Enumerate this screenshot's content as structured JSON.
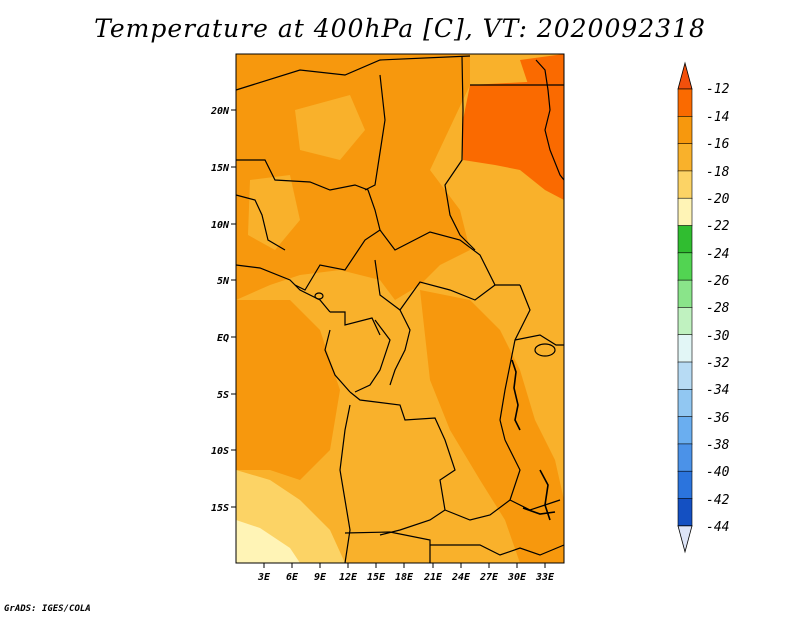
{
  "title": "Temperature at 400hPa [C], VT: 2020092318",
  "credit": "GrADS: IGES/COLA",
  "map": {
    "lat_ticks": [
      "20N",
      "15N",
      "10N",
      "5N",
      "EQ",
      "5S",
      "10S",
      "15S"
    ],
    "lon_ticks": [
      "3E",
      "6E",
      "9E",
      "12E",
      "15E",
      "18E",
      "21E",
      "24E",
      "27E",
      "30E",
      "33E"
    ]
  },
  "colorbar": {
    "labels": [
      "-12",
      "-14",
      "-16",
      "-18",
      "-20",
      "-22",
      "-24",
      "-26",
      "-28",
      "-30",
      "-32",
      "-34",
      "-36",
      "-38",
      "-40",
      "-42",
      "-44"
    ],
    "colors": {
      "top_triangle": "#f2500c",
      "bins": [
        "#fa6a00",
        "#f7980d",
        "#f9b12b",
        "#fcd365",
        "#fff4b6",
        "#30bd30",
        "#52d452",
        "#8ae48a",
        "#c0f2c0",
        "#e2f6f6",
        "#b7dbf4",
        "#91c7f2",
        "#6aaef0",
        "#4b92e8",
        "#2b74dd",
        "#1450c2",
        "#0c2d94",
        "#07156a"
      ],
      "bottom_triangle": "#dde4f7"
    }
  }
}
